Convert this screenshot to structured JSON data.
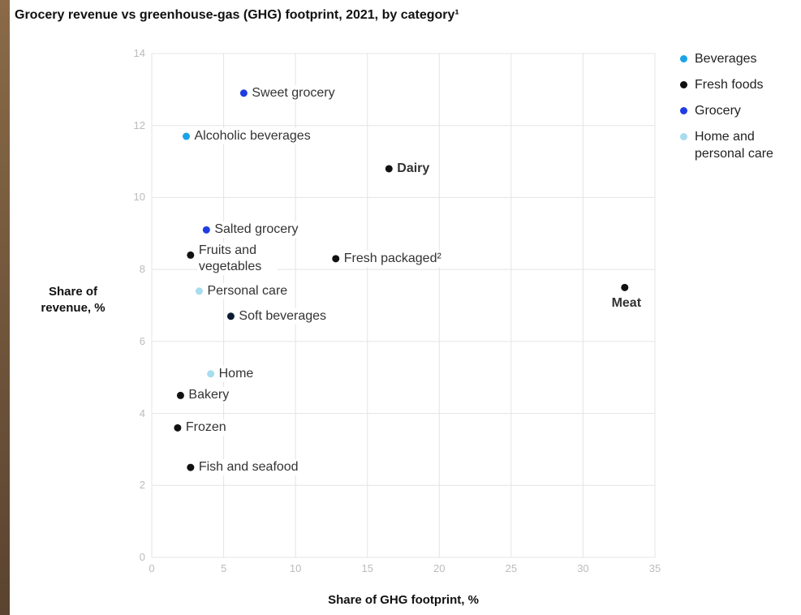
{
  "chart_data": {
    "type": "scatter",
    "title": "Grocery revenue vs greenhouse-gas (GHG) footprint, 2021, by category¹",
    "x_label": "Share of GHG footprint, %",
    "y_label": "Share of revenue, %",
    "xlim": [
      0,
      35
    ],
    "xticks": [
      0,
      5,
      10,
      15,
      20,
      25,
      30,
      35
    ],
    "ylim": [
      0,
      14
    ],
    "yticks": [
      0,
      2,
      4,
      6,
      8,
      10,
      12,
      14
    ],
    "grid": true,
    "legend": "right",
    "series": [
      {
        "name": "Beverages",
        "color": "#1aa3e8",
        "colors": [
          "#1aa3e8",
          "#0d1b33"
        ],
        "labels": [
          "Alcoholic beverages",
          "Soft beverages"
        ],
        "x": [
          2.4,
          5.5
        ],
        "values": [
          11.7,
          6.7
        ]
      },
      {
        "name": "Fresh foods",
        "color": "#111111",
        "labels": [
          "Dairy",
          "Fruits and vegetables",
          "Fresh packaged²",
          "Meat",
          "Bakery",
          "Frozen",
          "Fish and seafood"
        ],
        "x": [
          16.5,
          2.7,
          12.8,
          32.9,
          2.0,
          1.8,
          2.7
        ],
        "values": [
          10.8,
          8.4,
          8.3,
          7.5,
          4.5,
          3.6,
          2.5
        ]
      },
      {
        "name": "Grocery",
        "color": "#1f3de0",
        "labels": [
          "Sweet grocery",
          "Salted grocery"
        ],
        "x": [
          6.4,
          3.8
        ],
        "values": [
          12.9,
          9.1
        ]
      },
      {
        "name": "Home and personal care",
        "color": "#a8dcef",
        "labels": [
          "Personal care",
          "Home"
        ],
        "x": [
          3.3,
          4.1
        ],
        "values": [
          7.4,
          5.1
        ]
      }
    ]
  }
}
